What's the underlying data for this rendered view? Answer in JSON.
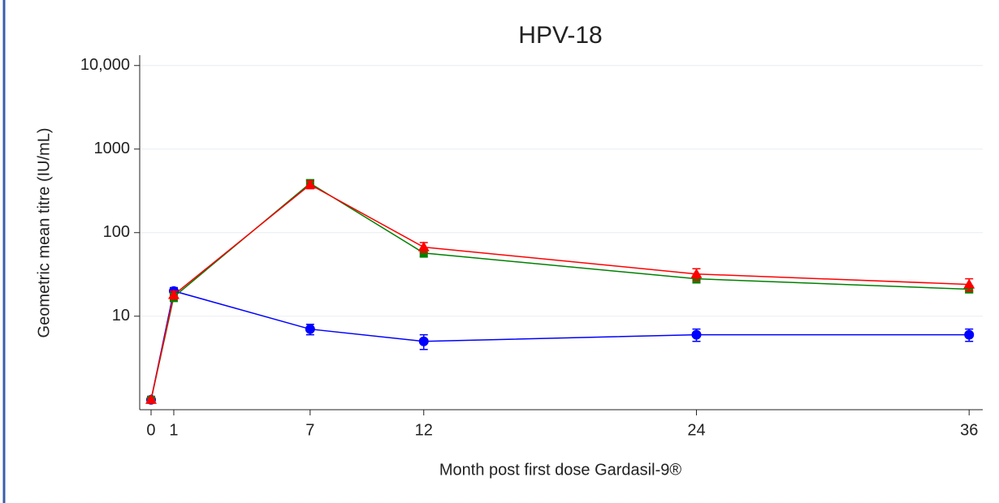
{
  "chart_data": {
    "type": "line",
    "title": "HPV-18",
    "x_label": "Month post first dose Gardasil-9®",
    "y_label": "Geometric mean titre (IU/mL)",
    "x": [
      0,
      1,
      7,
      12,
      24,
      36
    ],
    "xlim": [
      -0.5,
      36.6
    ],
    "xticks": [
      0,
      1,
      7,
      12,
      24,
      36
    ],
    "ylim": [
      0.76,
      13300
    ],
    "log_y": true,
    "yticks": [
      10,
      100,
      1000,
      {
        "value": 10000,
        "label": "10,000"
      }
    ],
    "grid": true,
    "series": [
      {
        "marker": "circle",
        "color": "#0000ff",
        "values": [
          1,
          20,
          7,
          5,
          6,
          6
        ],
        "errors": [
          0.05,
          2,
          1,
          1,
          1,
          1
        ]
      },
      {
        "marker": "square",
        "color": "#008000",
        "values": [
          1,
          17,
          390,
          57,
          28,
          21
        ],
        "errors": [
          0.05,
          2,
          40,
          6,
          3,
          2
        ]
      },
      {
        "marker": "triangle",
        "color": "#ff0000",
        "values": [
          1,
          18,
          375,
          67,
          32,
          24
        ],
        "errors": [
          0.05,
          2,
          40,
          9,
          5,
          4
        ]
      }
    ]
  }
}
